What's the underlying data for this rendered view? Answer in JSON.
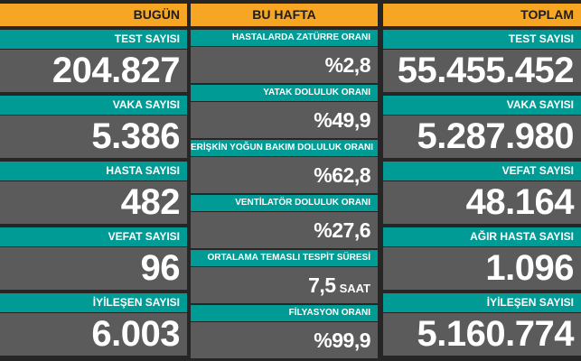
{
  "columns": [
    {
      "header": "BUGÜN",
      "items": [
        {
          "label": "TEST SAYISI",
          "value": "204.827"
        },
        {
          "label": "VAKA SAYISI",
          "value": "5.386"
        },
        {
          "label": "HASTA SAYISI",
          "value": "482"
        },
        {
          "label": "VEFAT SAYISI",
          "value": "96"
        },
        {
          "label": "İYİLEŞEN SAYISI",
          "value": "6.003"
        }
      ]
    },
    {
      "header": "BU HAFTA",
      "items": [
        {
          "label": "HASTALARDA ZATÜRRE ORANI",
          "value": "%2,8"
        },
        {
          "label": "YATAK DOLULUK ORANI",
          "value": "%49,9"
        },
        {
          "label": "ERİŞKİN YOĞUN BAKIM DOLULUK ORANI",
          "value": "%62,8"
        },
        {
          "label": "VENTİLATÖR DOLULUK ORANI",
          "value": "%27,6"
        },
        {
          "label": "ORTALAMA TEMASLI TESPİT SÜRESİ",
          "value": "7,5",
          "unit": "SAAT"
        },
        {
          "label": "FİLYASYON ORANI",
          "value": "%99,9"
        }
      ]
    },
    {
      "header": "TOPLAM",
      "items": [
        {
          "label": "TEST SAYISI",
          "value": "55.455.452"
        },
        {
          "label": "VAKA SAYISI",
          "value": "5.287.980"
        },
        {
          "label": "VEFAT SAYISI",
          "value": "48.164"
        },
        {
          "label": "AĞIR HASTA SAYISI",
          "value": "1.096"
        },
        {
          "label": "İYİLEŞEN SAYISI",
          "value": "5.160.774"
        }
      ]
    }
  ]
}
